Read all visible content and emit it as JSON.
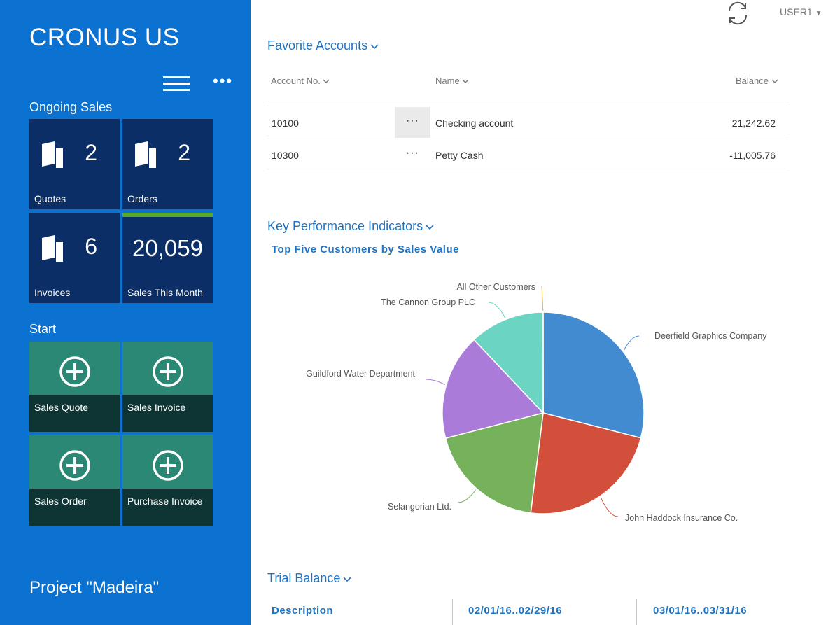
{
  "company": "CRONUS US",
  "ongoing_sales": {
    "label": "Ongoing Sales",
    "tiles": [
      {
        "caption": "Quotes",
        "count": "2"
      },
      {
        "caption": "Orders",
        "count": "2"
      },
      {
        "caption": "Invoices",
        "count": "6"
      },
      {
        "caption": "Sales This Month",
        "count": "20,059"
      }
    ]
  },
  "start": {
    "label": "Start",
    "actions": [
      {
        "label": "Sales Quote"
      },
      {
        "label": "Sales Invoice"
      },
      {
        "label": "Sales Order"
      },
      {
        "label": "Purchase Invoice"
      }
    ]
  },
  "project": "Project \"Madeira\"",
  "header": {
    "user": "USER1"
  },
  "favorite_accounts": {
    "title": "Favorite Accounts",
    "columns": {
      "account_no": "Account No.",
      "name": "Name",
      "balance": "Balance"
    },
    "rows": [
      {
        "account_no": "10100",
        "name": "Checking account",
        "balance": "21,242.62"
      },
      {
        "account_no": "10300",
        "name": "Petty Cash",
        "balance": "-11,005.76"
      }
    ]
  },
  "kpi": {
    "title": "Key Performance Indicators",
    "chart_title": "Top Five Customers by Sales Value"
  },
  "chart_data": {
    "type": "pie",
    "title": "Top Five Customers by Sales Value",
    "slices": [
      {
        "label": "Deerfield Graphics Company",
        "value": 29,
        "color": "#428bd1"
      },
      {
        "label": "John Haddock Insurance Co.",
        "value": 23,
        "color": "#d24f3c"
      },
      {
        "label": "Selangorian Ltd.",
        "value": 19,
        "color": "#76b15c"
      },
      {
        "label": "Guildford Water Department",
        "value": 17,
        "color": "#ab7bd9"
      },
      {
        "label": "The Cannon Group PLC",
        "value": 12,
        "color": "#6bd4c3"
      },
      {
        "label": "All Other Customers",
        "value": 0.05,
        "color": "#f0b429"
      }
    ]
  },
  "trial_balance": {
    "title": "Trial Balance",
    "columns": [
      "Description",
      "02/01/16..02/29/16",
      "03/01/16..03/31/16"
    ]
  }
}
